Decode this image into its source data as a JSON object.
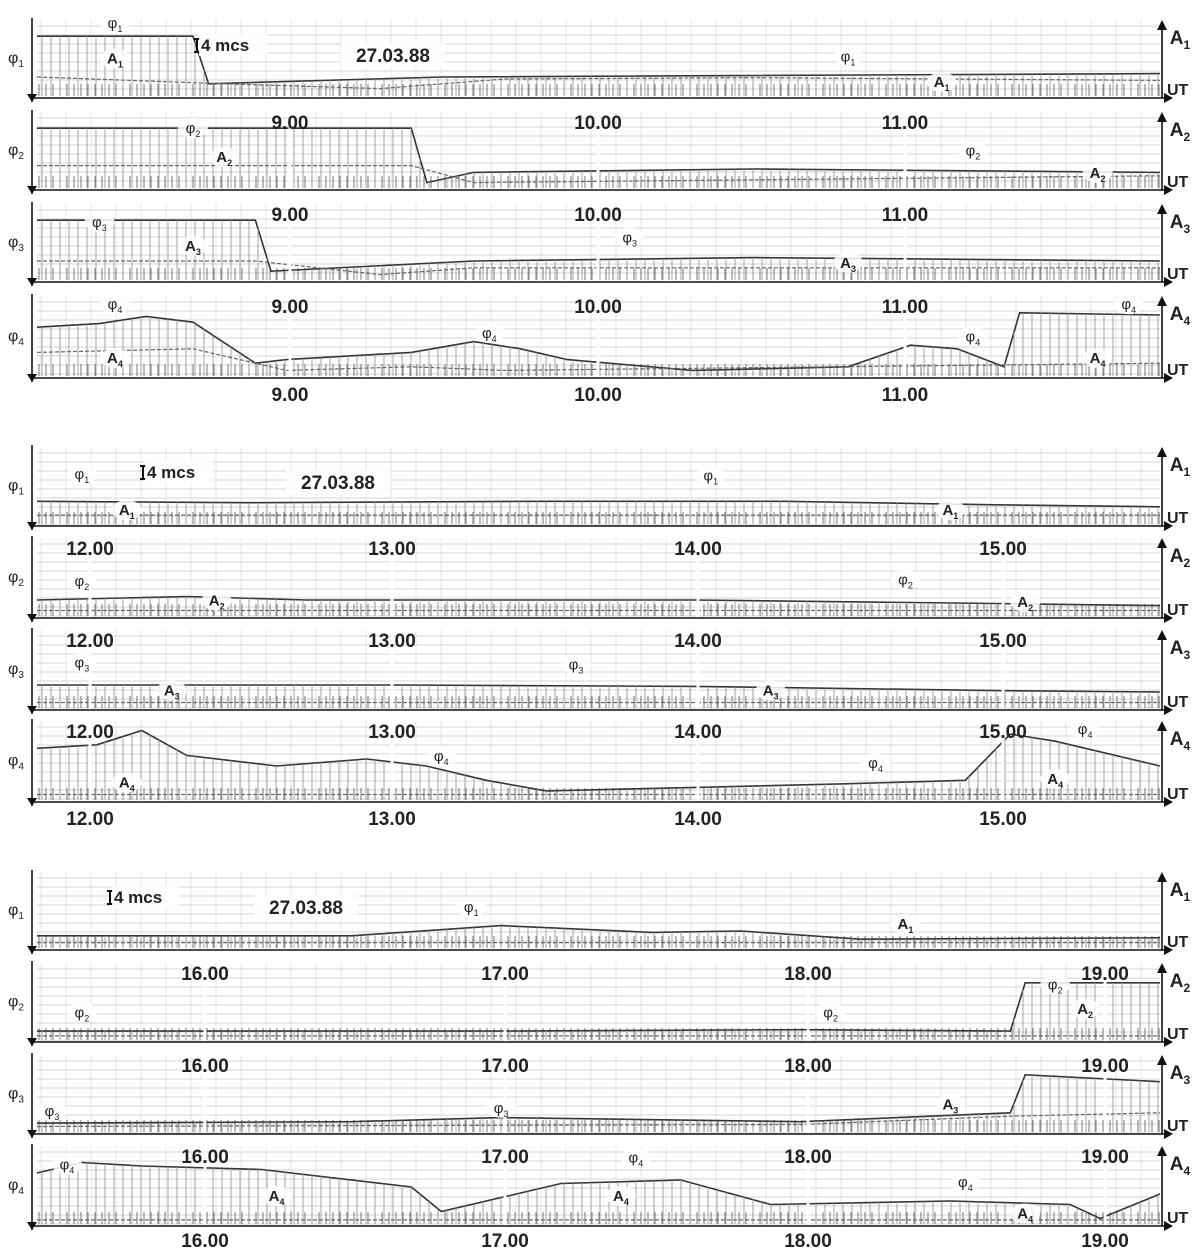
{
  "chart_data": [
    {
      "type": "line",
      "title": "27.03.88",
      "scale_bar": "4 mcs",
      "time_axis_label": "UT",
      "x_range": [
        8.2,
        11.8
      ],
      "x_ticks": [
        "9.00",
        "10.00",
        "11.00"
      ],
      "strips": [
        {
          "left_label": "φ1",
          "right_label": "A1",
          "axis_label": "UT",
          "ticks_in_strip": false,
          "series": [
            {
              "name": "φ1",
              "x": [
                8.2,
                8.7,
                8.75,
                9.5,
                11.8
              ],
              "y": [
                0.85,
                0.85,
                0.15,
                0.25,
                0.3
              ]
            },
            {
              "name": "A1",
              "x": [
                8.2,
                8.8,
                9.3,
                9.7,
                10.5,
                11.8
              ],
              "y": [
                0.25,
                0.15,
                0.08,
                0.22,
                0.24,
                0.2
              ]
            }
          ],
          "annotations": [
            {
              "text": "φ1",
              "x": 8.45,
              "y": 0.97
            },
            {
              "text": "A1",
              "x": 8.45,
              "y": 0.45
            },
            {
              "text": "φ1",
              "x": 10.8,
              "y": 0.48
            },
            {
              "text": "A1",
              "x": 11.1,
              "y": 0.1
            }
          ]
        },
        {
          "left_label": "φ2",
          "right_label": "A2",
          "axis_label": "UT",
          "ticks_in_strip": true,
          "series": [
            {
              "name": "φ2",
              "x": [
                8.2,
                9.4,
                9.45,
                9.6,
                10.5,
                11.8
              ],
              "y": [
                0.85,
                0.85,
                0.05,
                0.2,
                0.25,
                0.2
              ]
            },
            {
              "name": "A2",
              "x": [
                8.2,
                9.4,
                9.6,
                11.8
              ],
              "y": [
                0.3,
                0.3,
                0.05,
                0.15
              ]
            }
          ],
          "annotations": [
            {
              "text": "φ2",
              "x": 8.7,
              "y": 0.78
            },
            {
              "text": "A2",
              "x": 8.8,
              "y": 0.35
            },
            {
              "text": "φ2",
              "x": 11.2,
              "y": 0.45
            },
            {
              "text": "A2",
              "x": 11.6,
              "y": 0.12
            }
          ]
        },
        {
          "left_label": "φ3",
          "right_label": "A3",
          "axis_label": "UT",
          "ticks_in_strip": true,
          "series": [
            {
              "name": "φ3",
              "x": [
                8.2,
                8.9,
                8.95,
                9.6,
                10.5,
                11.8
              ],
              "y": [
                0.85,
                0.85,
                0.1,
                0.25,
                0.3,
                0.25
              ]
            },
            {
              "name": "A3",
              "x": [
                8.2,
                8.9,
                9.3,
                9.6,
                11.8
              ],
              "y": [
                0.25,
                0.25,
                0.05,
                0.15,
                0.15
              ]
            }
          ],
          "annotations": [
            {
              "text": "φ3",
              "x": 8.4,
              "y": 0.75
            },
            {
              "text": "A3",
              "x": 8.7,
              "y": 0.4
            },
            {
              "text": "φ3",
              "x": 10.1,
              "y": 0.52
            },
            {
              "text": "A3",
              "x": 10.8,
              "y": 0.15
            }
          ]
        },
        {
          "left_label": "φ4",
          "right_label": "A4",
          "axis_label": "UT",
          "ticks_in_strip": true,
          "series": [
            {
              "name": "φ4",
              "x": [
                8.2,
                8.4,
                8.55,
                8.7,
                8.9,
                9.0,
                9.4,
                9.6,
                9.75,
                9.9,
                10.3,
                10.8,
                11.0,
                11.15,
                11.3,
                11.35,
                11.8
              ],
              "y": [
                0.65,
                0.7,
                0.8,
                0.72,
                0.15,
                0.2,
                0.3,
                0.45,
                0.35,
                0.2,
                0.05,
                0.1,
                0.4,
                0.35,
                0.1,
                0.85,
                0.82
              ]
            },
            {
              "name": "A4",
              "x": [
                8.2,
                8.7,
                9.0,
                9.4,
                9.7,
                11.8
              ],
              "y": [
                0.3,
                0.35,
                0.05,
                0.1,
                0.05,
                0.15
              ]
            }
          ],
          "annotations": [
            {
              "text": "φ4",
              "x": 8.45,
              "y": 0.9
            },
            {
              "text": "A4",
              "x": 8.45,
              "y": 0.15
            },
            {
              "text": "φ4",
              "x": 9.65,
              "y": 0.5
            },
            {
              "text": "φ4",
              "x": 11.2,
              "y": 0.45
            },
            {
              "text": "φ4",
              "x": 11.7,
              "y": 0.9
            },
            {
              "text": "A4",
              "x": 11.6,
              "y": 0.15
            }
          ]
        }
      ]
    },
    {
      "type": "line",
      "title": "27.03.88",
      "scale_bar": "4 mcs",
      "time_axis_label": "UT",
      "x_range": [
        11.8,
        15.55
      ],
      "x_ticks": [
        "12.00",
        "13.00",
        "14.00",
        "15.00"
      ],
      "strips": [
        {
          "left_label": "φ1",
          "right_label": "A1",
          "axis_label": "UT",
          "ticks_in_strip": false,
          "series": [
            {
              "name": "φ1",
              "x": [
                11.8,
                12.5,
                13.5,
                14.3,
                15.0,
                15.55
              ],
              "y": [
                0.3,
                0.28,
                0.3,
                0.3,
                0.25,
                0.22
              ]
            },
            {
              "name": "A1",
              "x": [
                11.8,
                15.55
              ],
              "y": [
                0.1,
                0.1
              ]
            }
          ],
          "annotations": [
            {
              "text": "φ1",
              "x": 11.95,
              "y": 0.62
            },
            {
              "text": "A1",
              "x": 12.1,
              "y": 0.1
            },
            {
              "text": "φ1",
              "x": 14.05,
              "y": 0.6
            },
            {
              "text": "A1",
              "x": 14.85,
              "y": 0.1
            }
          ]
        },
        {
          "left_label": "φ2",
          "right_label": "A2",
          "axis_label": "UT",
          "ticks_in_strip": true,
          "series": [
            {
              "name": "φ2",
              "x": [
                11.8,
                12.3,
                12.7,
                14.0,
                15.0,
                15.55
              ],
              "y": [
                0.2,
                0.25,
                0.2,
                0.2,
                0.15,
                0.12
              ]
            },
            {
              "name": "A2",
              "x": [
                11.8,
                15.55
              ],
              "y": [
                0.05,
                0.05
              ]
            }
          ],
          "annotations": [
            {
              "text": "φ2",
              "x": 11.95,
              "y": 0.4
            },
            {
              "text": "A2",
              "x": 12.4,
              "y": 0.12
            },
            {
              "text": "φ2",
              "x": 14.7,
              "y": 0.42
            },
            {
              "text": "A2",
              "x": 15.1,
              "y": 0.1
            }
          ]
        },
        {
          "left_label": "φ3",
          "right_label": "A3",
          "axis_label": "UT",
          "ticks_in_strip": true,
          "series": [
            {
              "name": "φ3",
              "x": [
                11.8,
                13.0,
                14.0,
                15.0,
                15.55
              ],
              "y": [
                0.3,
                0.3,
                0.28,
                0.22,
                0.2
              ]
            },
            {
              "name": "A3",
              "x": [
                11.8,
                15.55
              ],
              "y": [
                0.05,
                0.05
              ]
            }
          ],
          "annotations": [
            {
              "text": "φ3",
              "x": 11.95,
              "y": 0.55
            },
            {
              "text": "A3",
              "x": 12.25,
              "y": 0.15
            },
            {
              "text": "φ3",
              "x": 13.6,
              "y": 0.52
            },
            {
              "text": "A3",
              "x": 14.25,
              "y": 0.15
            }
          ]
        },
        {
          "left_label": "φ4",
          "right_label": "A4",
          "axis_label": "UT",
          "ticks_in_strip": true,
          "series": [
            {
              "name": "φ4",
              "x": [
                11.8,
                12.0,
                12.15,
                12.3,
                12.6,
                12.9,
                13.1,
                13.3,
                13.5,
                14.0,
                14.5,
                14.9,
                15.05,
                15.2,
                15.55
              ],
              "y": [
                0.7,
                0.75,
                0.95,
                0.6,
                0.45,
                0.55,
                0.45,
                0.25,
                0.1,
                0.15,
                0.2,
                0.25,
                0.9,
                0.8,
                0.45
              ]
            },
            {
              "name": "A4",
              "x": [
                11.8,
                15.55
              ],
              "y": [
                0.05,
                0.05
              ]
            }
          ],
          "annotations": [
            {
              "text": "φ4",
              "x": 13.15,
              "y": 0.52
            },
            {
              "text": "A4",
              "x": 12.1,
              "y": 0.15
            },
            {
              "text": "φ4",
              "x": 14.6,
              "y": 0.42
            },
            {
              "text": "φ4",
              "x": 15.3,
              "y": 0.9
            },
            {
              "text": "A4",
              "x": 15.2,
              "y": 0.2
            }
          ]
        }
      ]
    },
    {
      "type": "line",
      "title": "27.03.88",
      "scale_bar": "4 mcs",
      "time_axis_label": "UT",
      "x_range": [
        15.45,
        19.2
      ],
      "x_ticks": [
        "16.00",
        "17.00",
        "18.00",
        "19.00"
      ],
      "strips": [
        {
          "left_label": "φ1",
          "right_label": "A1",
          "axis_label": "UT",
          "ticks_in_strip": false,
          "series": [
            {
              "name": "φ1",
              "x": [
                15.45,
                16.5,
                17.0,
                17.5,
                17.8,
                18.2,
                19.2
              ],
              "y": [
                0.15,
                0.15,
                0.3,
                0.2,
                0.22,
                0.1,
                0.12
              ]
            },
            {
              "name": "A1",
              "x": [
                15.45,
                19.2
              ],
              "y": [
                0.05,
                0.05
              ]
            }
          ],
          "annotations": [
            {
              "text": "φ1",
              "x": 16.9,
              "y": 0.5
            },
            {
              "text": "A1",
              "x": 18.35,
              "y": 0.25
            }
          ]
        },
        {
          "left_label": "φ2",
          "right_label": "A2",
          "axis_label": "UT",
          "ticks_in_strip": true,
          "series": [
            {
              "name": "φ2",
              "x": [
                15.45,
                17.0,
                18.0,
                18.7,
                18.75,
                19.2
              ],
              "y": [
                0.1,
                0.1,
                0.12,
                0.1,
                0.8,
                0.8
              ]
            },
            {
              "name": "A2",
              "x": [
                15.45,
                19.2
              ],
              "y": [
                0.03,
                0.03
              ]
            }
          ],
          "annotations": [
            {
              "text": "φ2",
              "x": 15.6,
              "y": 0.3
            },
            {
              "text": "φ2",
              "x": 18.1,
              "y": 0.3
            },
            {
              "text": "φ2",
              "x": 18.85,
              "y": 0.7
            },
            {
              "text": "A2",
              "x": 18.95,
              "y": 0.35
            }
          ]
        },
        {
          "left_label": "φ3",
          "right_label": "A3",
          "axis_label": "UT",
          "ticks_in_strip": true,
          "series": [
            {
              "name": "φ3",
              "x": [
                15.45,
                16.5,
                17.0,
                18.0,
                18.7,
                18.75,
                19.2
              ],
              "y": [
                0.1,
                0.12,
                0.18,
                0.12,
                0.25,
                0.8,
                0.7
              ]
            },
            {
              "name": "A3",
              "x": [
                15.45,
                18.0,
                18.7,
                19.2
              ],
              "y": [
                0.05,
                0.08,
                0.2,
                0.25
              ]
            }
          ],
          "annotations": [
            {
              "text": "φ3",
              "x": 15.5,
              "y": 0.2
            },
            {
              "text": "φ3",
              "x": 17.0,
              "y": 0.25
            },
            {
              "text": "A3",
              "x": 18.5,
              "y": 0.3
            }
          ]
        },
        {
          "left_label": "φ4",
          "right_label": "A4",
          "axis_label": "UT",
          "ticks_in_strip": true,
          "series": [
            {
              "name": "φ4",
              "x": [
                15.45,
                15.6,
                15.8,
                16.2,
                16.7,
                16.8,
                17.2,
                17.6,
                17.9,
                18.5,
                18.9,
                19.0,
                19.2
              ],
              "y": [
                0.7,
                0.85,
                0.8,
                0.75,
                0.5,
                0.15,
                0.55,
                0.6,
                0.25,
                0.3,
                0.25,
                0.05,
                0.4
              ]
            },
            {
              "name": "A4",
              "x": [
                15.45,
                19.2
              ],
              "y": [
                0.03,
                0.03
              ]
            }
          ],
          "annotations": [
            {
              "text": "φ4",
              "x": 15.55,
              "y": 0.75
            },
            {
              "text": "A4",
              "x": 16.25,
              "y": 0.3
            },
            {
              "text": "φ4",
              "x": 17.45,
              "y": 0.85
            },
            {
              "text": "A4",
              "x": 17.4,
              "y": 0.3
            },
            {
              "text": "φ4",
              "x": 18.55,
              "y": 0.5
            },
            {
              "text": "A4",
              "x": 18.75,
              "y": 0.05
            }
          ]
        }
      ]
    }
  ]
}
